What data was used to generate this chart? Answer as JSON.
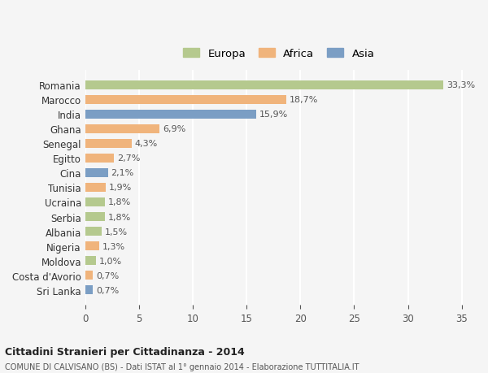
{
  "countries": [
    "Romania",
    "Marocco",
    "India",
    "Ghana",
    "Senegal",
    "Egitto",
    "Cina",
    "Tunisia",
    "Ucraina",
    "Serbia",
    "Albania",
    "Nigeria",
    "Moldova",
    "Costa d'Avorio",
    "Sri Lanka"
  ],
  "values": [
    33.3,
    18.7,
    15.9,
    6.9,
    4.3,
    2.7,
    2.1,
    1.9,
    1.8,
    1.8,
    1.5,
    1.3,
    1.0,
    0.7,
    0.7
  ],
  "labels": [
    "33,3%",
    "18,7%",
    "15,9%",
    "6,9%",
    "4,3%",
    "2,7%",
    "2,1%",
    "1,9%",
    "1,8%",
    "1,8%",
    "1,5%",
    "1,3%",
    "1,0%",
    "0,7%",
    "0,7%"
  ],
  "continents": [
    "Europa",
    "Africa",
    "Asia",
    "Africa",
    "Africa",
    "Africa",
    "Asia",
    "Africa",
    "Europa",
    "Europa",
    "Europa",
    "Africa",
    "Europa",
    "Africa",
    "Asia"
  ],
  "colors": {
    "Europa": "#b5c98e",
    "Africa": "#f0b47c",
    "Asia": "#7b9ec4"
  },
  "legend_colors": {
    "Europa": "#b5c98e",
    "Africa": "#f0b47c",
    "Asia": "#7b9ec4"
  },
  "title1": "Cittadini Stranieri per Cittadinanza - 2014",
  "title2": "COMUNE DI CALVISANO (BS) - Dati ISTAT al 1° gennaio 2014 - Elaborazione TUTTITALIA.IT",
  "xlim": [
    0,
    36
  ],
  "xticks": [
    0,
    5,
    10,
    15,
    20,
    25,
    30,
    35
  ],
  "background_color": "#f5f5f5",
  "grid_color": "#ffffff",
  "bar_height": 0.6
}
